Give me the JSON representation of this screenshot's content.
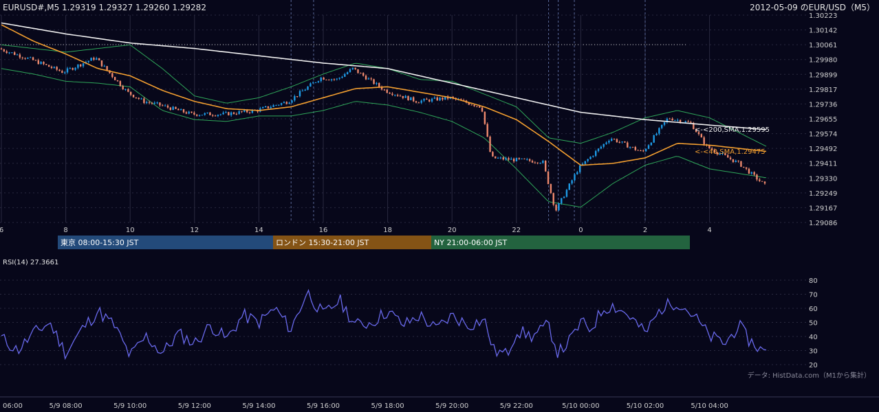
{
  "header": {
    "quote": "EURUSD#,M5 1.29319 1.29327 1.29260 1.29282",
    "title": "2012-05-09 のEUR/USD（M5）"
  },
  "sessions": [
    {
      "label": "東京 08:00-15:30 JST",
      "color": "#234a7a"
    },
    {
      "label": "ロンドン 15:30-21:00 JST",
      "color": "#845315"
    },
    {
      "label": "NY 21:00-06:00 JST",
      "color": "#23633f"
    }
  ],
  "ma_labels": {
    "sma200": "<-<200,SMA,1.29595",
    "sma40": "<-<40,SMA,1.29475"
  },
  "rsi": {
    "label": "RSI(14) 27.3661"
  },
  "credit": "データ: HistData.com（M1から集計）",
  "colors": {
    "bull": "#1e9be6",
    "bear": "#f08a6e",
    "sma200": "#f2f2f2",
    "sma40": "#f5a030",
    "bands": "#2fa85a",
    "rsi": "#6a6aee",
    "grid": "#2a2a40"
  },
  "chart_data": {
    "type": "candlestick",
    "price_axis": {
      "ticks": [
        "1.30223",
        "1.30142",
        "1.30061",
        "1.29980",
        "1.29899",
        "1.29817",
        "1.29736",
        "1.29655",
        "1.29574",
        "1.29492",
        "1.29411",
        "1.29330",
        "1.29249",
        "1.29167",
        "1.29086"
      ],
      "ylim": [
        1.29086,
        1.30223
      ]
    },
    "hour_axis": {
      "ticks": [
        "6",
        "8",
        "10",
        "12",
        "14",
        "16",
        "18",
        "20",
        "22",
        "0",
        "2",
        "4"
      ]
    },
    "time_axis": {
      "ticks": [
        "06:00",
        "5/9 08:00",
        "5/9 10:00",
        "5/9 12:00",
        "5/9 14:00",
        "5/9 16:00",
        "5/9 18:00",
        "5/9 20:00",
        "5/9 22:00",
        "5/10 00:00",
        "5/10 02:00",
        "5/10 04:00"
      ]
    },
    "rsi_axis": {
      "ticks": [
        "80",
        "70",
        "60",
        "50",
        "40",
        "30",
        "20"
      ],
      "ylim": [
        15,
        85
      ]
    },
    "close_path": [
      [
        6.0,
        1.3004
      ],
      [
        7.0,
        1.2998
      ],
      [
        8.0,
        1.2991
      ],
      [
        9.0,
        1.2999
      ],
      [
        10.0,
        1.298
      ],
      [
        10.5,
        1.2975
      ],
      [
        11.0,
        1.2973
      ],
      [
        12.0,
        1.2968
      ],
      [
        13.0,
        1.2968
      ],
      [
        14.0,
        1.297
      ],
      [
        15.0,
        1.2975
      ],
      [
        16.0,
        1.2988
      ],
      [
        16.5,
        1.2987
      ],
      [
        17.0,
        1.2993
      ],
      [
        18.0,
        1.2981
      ],
      [
        19.0,
        1.2975
      ],
      [
        20.0,
        1.2977
      ],
      [
        21.0,
        1.2972
      ],
      [
        21.3,
        1.2944
      ],
      [
        22.0,
        1.2943
      ],
      [
        22.9,
        1.2942
      ],
      [
        23.3,
        1.2915
      ],
      [
        24.0,
        1.2938
      ],
      [
        25.0,
        1.2955
      ],
      [
        26.0,
        1.2947
      ],
      [
        26.8,
        1.2966
      ],
      [
        27.5,
        1.2963
      ],
      [
        28.0,
        1.295
      ],
      [
        29.0,
        1.2941
      ],
      [
        29.8,
        1.2929
      ]
    ],
    "sma200": [
      [
        6.0,
        1.3018
      ],
      [
        8.0,
        1.3012
      ],
      [
        10.0,
        1.3007
      ],
      [
        12.0,
        1.3004
      ],
      [
        14.0,
        1.3
      ],
      [
        16.0,
        1.2996
      ],
      [
        18.0,
        1.2993
      ],
      [
        20.0,
        1.2985
      ],
      [
        22.0,
        1.2977
      ],
      [
        24.0,
        1.2969
      ],
      [
        26.0,
        1.2965
      ],
      [
        28.0,
        1.2962
      ],
      [
        29.8,
        1.29595
      ]
    ],
    "sma40": [
      [
        6.0,
        1.3017
      ],
      [
        7.0,
        1.3008
      ],
      [
        8.0,
        1.3001
      ],
      [
        9.0,
        1.2993
      ],
      [
        10.0,
        1.2989
      ],
      [
        11.0,
        1.2981
      ],
      [
        12.0,
        1.2975
      ],
      [
        13.0,
        1.2971
      ],
      [
        14.0,
        1.297
      ],
      [
        15.0,
        1.2972
      ],
      [
        16.0,
        1.2977
      ],
      [
        17.0,
        1.2982
      ],
      [
        18.0,
        1.2983
      ],
      [
        19.0,
        1.298
      ],
      [
        20.0,
        1.2977
      ],
      [
        21.0,
        1.2972
      ],
      [
        22.0,
        1.2965
      ],
      [
        23.0,
        1.2953
      ],
      [
        24.0,
        1.294
      ],
      [
        25.0,
        1.2941
      ],
      [
        26.0,
        1.2944
      ],
      [
        27.0,
        1.2952
      ],
      [
        28.0,
        1.2951
      ],
      [
        29.8,
        1.29475
      ]
    ],
    "bb_upper": [
      [
        6.0,
        1.3006
      ],
      [
        7.0,
        1.3004
      ],
      [
        8.0,
        1.3002
      ],
      [
        9.0,
        1.3004
      ],
      [
        10.0,
        1.3006
      ],
      [
        11.0,
        1.2993
      ],
      [
        12.0,
        1.2978
      ],
      [
        13.0,
        1.2974
      ],
      [
        14.0,
        1.2977
      ],
      [
        15.0,
        1.2983
      ],
      [
        16.0,
        1.299
      ],
      [
        17.0,
        1.2996
      ],
      [
        18.0,
        1.2993
      ],
      [
        19.0,
        1.2987
      ],
      [
        20.0,
        1.2986
      ],
      [
        21.0,
        1.2979
      ],
      [
        22.0,
        1.2972
      ],
      [
        23.0,
        1.2955
      ],
      [
        24.0,
        1.2952
      ],
      [
        25.0,
        1.2958
      ],
      [
        26.0,
        1.2966
      ],
      [
        27.0,
        1.297
      ],
      [
        28.0,
        1.2966
      ],
      [
        29.8,
        1.295
      ]
    ],
    "bb_lower": [
      [
        6.0,
        1.2993
      ],
      [
        7.0,
        1.299
      ],
      [
        8.0,
        1.2986
      ],
      [
        9.0,
        1.2985
      ],
      [
        10.0,
        1.2983
      ],
      [
        11.0,
        1.297
      ],
      [
        12.0,
        1.2965
      ],
      [
        13.0,
        1.2964
      ],
      [
        14.0,
        1.2967
      ],
      [
        15.0,
        1.2967
      ],
      [
        16.0,
        1.297
      ],
      [
        17.0,
        1.2975
      ],
      [
        18.0,
        1.2973
      ],
      [
        19.0,
        1.2969
      ],
      [
        20.0,
        1.2964
      ],
      [
        21.0,
        1.2955
      ],
      [
        22.0,
        1.2938
      ],
      [
        23.0,
        1.292
      ],
      [
        24.0,
        1.2917
      ],
      [
        25.0,
        1.293
      ],
      [
        26.0,
        1.294
      ],
      [
        27.0,
        1.2945
      ],
      [
        28.0,
        1.2938
      ],
      [
        29.8,
        1.2933
      ]
    ],
    "rsi_path": [
      [
        6.0,
        39
      ],
      [
        6.5,
        30
      ],
      [
        7.0,
        42
      ],
      [
        7.5,
        50
      ],
      [
        8.0,
        28
      ],
      [
        8.5,
        45
      ],
      [
        9.0,
        58
      ],
      [
        9.5,
        48
      ],
      [
        10.0,
        26
      ],
      [
        10.5,
        40
      ],
      [
        11.0,
        28
      ],
      [
        11.5,
        42
      ],
      [
        12.0,
        35
      ],
      [
        12.5,
        48
      ],
      [
        13.0,
        38
      ],
      [
        13.5,
        55
      ],
      [
        14.0,
        50
      ],
      [
        14.5,
        60
      ],
      [
        15.0,
        45
      ],
      [
        15.5,
        72
      ],
      [
        16.0,
        55
      ],
      [
        16.5,
        66
      ],
      [
        17.0,
        48
      ],
      [
        17.5,
        50
      ],
      [
        18.0,
        58
      ],
      [
        18.5,
        48
      ],
      [
        19.0,
        55
      ],
      [
        19.5,
        45
      ],
      [
        20.0,
        55
      ],
      [
        20.5,
        48
      ],
      [
        21.0,
        52
      ],
      [
        21.3,
        30
      ],
      [
        21.7,
        27
      ],
      [
        22.0,
        44
      ],
      [
        22.5,
        40
      ],
      [
        23.0,
        48
      ],
      [
        23.3,
        28
      ],
      [
        23.7,
        38
      ],
      [
        24.0,
        50
      ],
      [
        24.3,
        45
      ],
      [
        24.7,
        60
      ],
      [
        25.0,
        62
      ],
      [
        25.5,
        55
      ],
      [
        26.0,
        42
      ],
      [
        26.5,
        60
      ],
      [
        27.0,
        65
      ],
      [
        27.5,
        55
      ],
      [
        28.0,
        40
      ],
      [
        28.5,
        35
      ],
      [
        28.9,
        48
      ],
      [
        29.2,
        38
      ],
      [
        29.8,
        27
      ]
    ],
    "candle_spec": {
      "count": 290,
      "start_hour": 6.0,
      "end_hour": 29.8,
      "seed": 7,
      "step_size": 0.0001
    }
  }
}
